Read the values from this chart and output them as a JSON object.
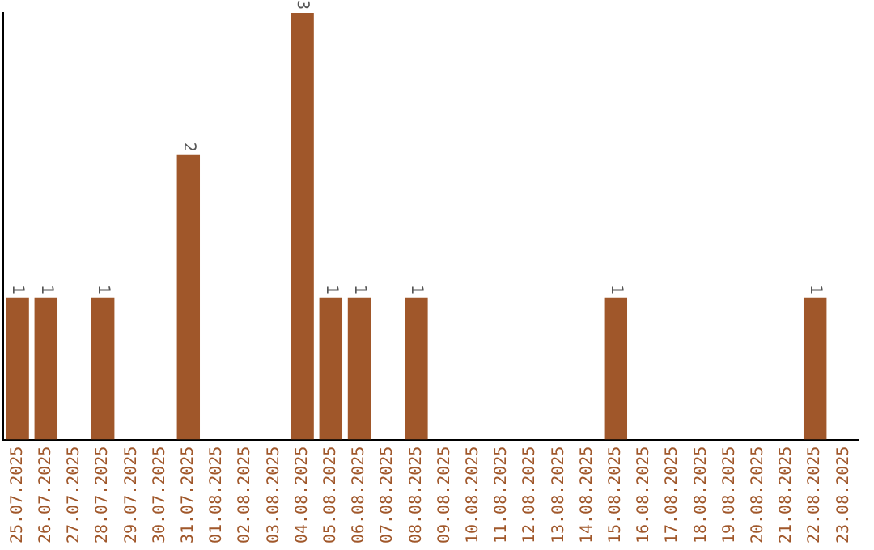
{
  "chart_data": {
    "type": "bar",
    "categories": [
      "25.07.2025",
      "26.07.2025",
      "27.07.2025",
      "28.07.2025",
      "29.07.2025",
      "30.07.2025",
      "31.07.2025",
      "01.08.2025",
      "02.08.2025",
      "03.08.2025",
      "04.08.2025",
      "05.08.2025",
      "06.08.2025",
      "07.08.2025",
      "08.08.2025",
      "09.08.2025",
      "10.08.2025",
      "11.08.2025",
      "12.08.2025",
      "13.08.2025",
      "14.08.2025",
      "15.08.2025",
      "16.08.2025",
      "17.08.2025",
      "18.08.2025",
      "19.08.2025",
      "20.08.2025",
      "21.08.2025",
      "22.08.2025",
      "23.08.2025"
    ],
    "values": [
      1,
      1,
      0,
      1,
      0,
      0,
      2,
      0,
      0,
      0,
      3,
      1,
      1,
      0,
      1,
      0,
      0,
      0,
      0,
      0,
      0,
      1,
      0,
      0,
      0,
      0,
      0,
      0,
      1,
      0
    ],
    "value_labels": [
      "1",
      "1",
      null,
      "1",
      null,
      null,
      "2",
      null,
      null,
      null,
      "3",
      "1",
      "1",
      null,
      "1",
      null,
      null,
      null,
      null,
      null,
      null,
      "1",
      null,
      null,
      null,
      null,
      null,
      null,
      "1",
      null
    ],
    "color": "#a0572a",
    "tick_labels": "x",
    "grid": false,
    "legend": false
  }
}
